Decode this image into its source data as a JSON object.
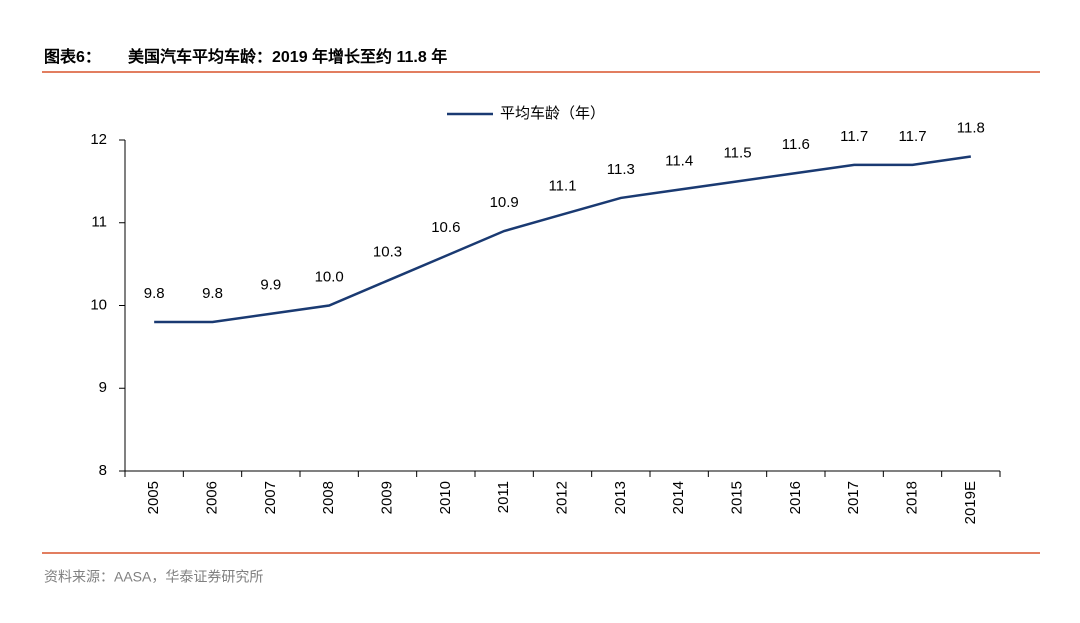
{
  "figure_label": "图表6：",
  "chart_data": {
    "type": "line",
    "title": "美国汽车平均车龄：2019 年增长至约 11.8 年",
    "categories": [
      "2005",
      "2006",
      "2007",
      "2008",
      "2009",
      "2010",
      "2011",
      "2012",
      "2013",
      "2014",
      "2015",
      "2016",
      "2017",
      "2018",
      "2019E"
    ],
    "series": [
      {
        "name": "平均车龄（年）",
        "color": "#1a3a72",
        "values": [
          9.8,
          9.8,
          9.9,
          10.0,
          10.3,
          10.6,
          10.9,
          11.1,
          11.3,
          11.4,
          11.5,
          11.6,
          11.7,
          11.7,
          11.8
        ],
        "value_labels": [
          "9.8",
          "9.8",
          "9.9",
          "10.0",
          "10.3",
          "10.6",
          "10.9",
          "11.1",
          "11.3",
          "11.4",
          "11.5",
          "11.6",
          "11.7",
          "11.7",
          "11.8"
        ]
      }
    ],
    "ylim": [
      8,
      12
    ],
    "yticks": [
      8,
      9,
      10,
      11,
      12
    ],
    "grid": false,
    "legend": "top"
  },
  "source": "资料来源：AASA，华泰证券研究所"
}
